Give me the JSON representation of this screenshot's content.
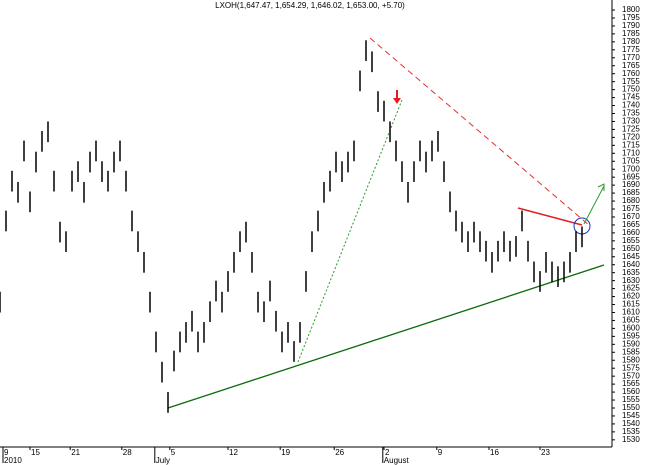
{
  "chart_data": {
    "type": "range-bar",
    "title": "LXOH(1,647.47, 1,654.29, 1,646.02, 1,653.00, +5.70)",
    "color": "#000000",
    "x": [
      0,
      1,
      2,
      3,
      4,
      5,
      6,
      7,
      8,
      9,
      10,
      11,
      12,
      13,
      14,
      15,
      16,
      17,
      18,
      19,
      20,
      21,
      22,
      23,
      24,
      25,
      26,
      27,
      28,
      29,
      30,
      31,
      32,
      33,
      34,
      35,
      36,
      37,
      38,
      39,
      40,
      41,
      42,
      43,
      44,
      45,
      46,
      47,
      48,
      49,
      50,
      51,
      52,
      53,
      54,
      55,
      56,
      57,
      58,
      59,
      60,
      61,
      62,
      63,
      64,
      65,
      66,
      67,
      68,
      69,
      70,
      71,
      72,
      73,
      74,
      75,
      76,
      77,
      78,
      79,
      80,
      81,
      82,
      83,
      84,
      85,
      86,
      87,
      88,
      89,
      90,
      91,
      92,
      93,
      94,
      95,
      96,
      97
    ],
    "high": [
      1623,
      1674,
      1699,
      1692,
      1718,
      1686,
      1711,
      1724,
      1730,
      1699,
      1667,
      1661,
      1699,
      1705,
      1692,
      1711,
      1718,
      1705,
      1699,
      1711,
      1718,
      1699,
      1674,
      1661,
      1648,
      1623,
      1598,
      1579,
      1560,
      1586,
      1598,
      1604,
      1611,
      1598,
      1604,
      1617,
      1630,
      1623,
      1636,
      1648,
      1661,
      1667,
      1648,
      1623,
      1617,
      1630,
      1611,
      1598,
      1604,
      1592,
      1604,
      1636,
      1661,
      1674,
      1692,
      1699,
      1711,
      1705,
      1711,
      1718,
      1762,
      1781,
      1774,
      1749,
      1743,
      1730,
      1718,
      1705,
      1692,
      1705,
      1718,
      1711,
      1718,
      1724,
      1705,
      1686,
      1674,
      1667,
      1661,
      1667,
      1661,
      1655,
      1648,
      1655,
      1661,
      1655,
      1658,
      1674,
      1655,
      1642,
      1636,
      1648,
      1642,
      1639,
      1642,
      1648,
      1661,
      1664
    ],
    "low": [
      1610,
      1661,
      1686,
      1679,
      1705,
      1673,
      1698,
      1711,
      1717,
      1686,
      1654,
      1648,
      1686,
      1692,
      1679,
      1698,
      1705,
      1692,
      1686,
      1698,
      1705,
      1686,
      1661,
      1648,
      1635,
      1610,
      1585,
      1566,
      1547,
      1573,
      1585,
      1591,
      1598,
      1585,
      1591,
      1604,
      1617,
      1610,
      1623,
      1635,
      1648,
      1654,
      1635,
      1610,
      1604,
      1617,
      1598,
      1585,
      1591,
      1579,
      1591,
      1623,
      1648,
      1661,
      1679,
      1686,
      1698,
      1692,
      1698,
      1705,
      1749,
      1768,
      1761,
      1736,
      1730,
      1717,
      1705,
      1692,
      1679,
      1692,
      1705,
      1698,
      1705,
      1711,
      1692,
      1673,
      1661,
      1654,
      1648,
      1654,
      1648,
      1642,
      1635,
      1642,
      1648,
      1642,
      1645,
      1661,
      1642,
      1629,
      1623,
      1635,
      1629,
      1626,
      1629,
      1635,
      1648,
      1651
    ],
    "xlim": [
      0,
      102
    ],
    "xticks": [
      {
        "value": 0.5,
        "label": "9"
      },
      {
        "value": 5,
        "label": "15"
      },
      {
        "value": 11.7,
        "label": "21"
      },
      {
        "value": 20.3,
        "label": "28"
      },
      {
        "value": 28.3,
        "label": "5"
      },
      {
        "value": 38,
        "label": "12"
      },
      {
        "value": 46.7,
        "label": "19"
      },
      {
        "value": 55.7,
        "label": "26"
      },
      {
        "value": 64,
        "label": "2"
      },
      {
        "value": 72.8,
        "label": "9"
      },
      {
        "value": 81.5,
        "label": "16"
      },
      {
        "value": 90,
        "label": "23"
      }
    ],
    "period_labels": [
      {
        "value": 0.5,
        "label": "2010"
      },
      {
        "value": 25.8,
        "label": "July"
      },
      {
        "value": 63.8,
        "label": "August"
      }
    ],
    "ylim": [
      1525.5,
      1806.3
    ],
    "yticks": [
      1530,
      1535,
      1540,
      1545,
      1550,
      1555,
      1560,
      1565,
      1570,
      1575,
      1580,
      1585,
      1590,
      1595,
      1600,
      1605,
      1610,
      1615,
      1620,
      1625,
      1630,
      1635,
      1640,
      1645,
      1650,
      1655,
      1660,
      1665,
      1670,
      1675,
      1680,
      1685,
      1690,
      1695,
      1700,
      1705,
      1710,
      1715,
      1720,
      1725,
      1730,
      1735,
      1740,
      1745,
      1750,
      1755,
      1760,
      1765,
      1770,
      1775,
      1780,
      1785,
      1790,
      1795,
      1800
    ],
    "grid": false
  }
}
